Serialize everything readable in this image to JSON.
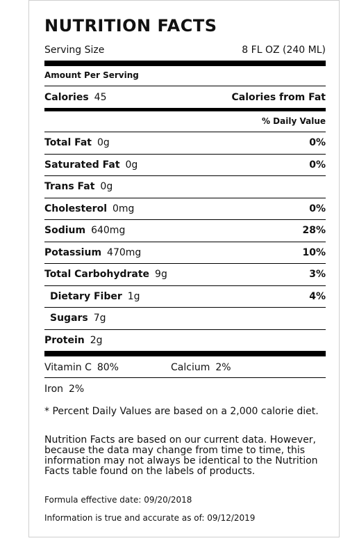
{
  "title": "NUTRITION FACTS",
  "serving": {
    "label": "Serving Size",
    "value": "8 FL OZ (240 ML)"
  },
  "amount_per_serving": "Amount Per Serving",
  "calories": {
    "label": "Calories",
    "value": "45",
    "from_fat_label": "Calories from Fat"
  },
  "daily_value_header": "% Daily Value",
  "nutrients": [
    {
      "name": "Total Fat",
      "amount": "0g",
      "dv": "0%"
    },
    {
      "name": "Saturated Fat",
      "amount": "0g",
      "dv": "0%"
    },
    {
      "name": "Trans Fat",
      "amount": "0g",
      "dv": ""
    },
    {
      "name": "Cholesterol",
      "amount": "0mg",
      "dv": "0%"
    },
    {
      "name": "Sodium",
      "amount": "640mg",
      "dv": "28%"
    },
    {
      "name": "Potassium",
      "amount": "470mg",
      "dv": "10%"
    },
    {
      "name": "Total Carbohydrate",
      "amount": "9g",
      "dv": "3%"
    },
    {
      "name": "Dietary Fiber",
      "amount": "1g",
      "dv": "4%"
    },
    {
      "name": "Sugars",
      "amount": "7g",
      "dv": ""
    },
    {
      "name": "Protein",
      "amount": "2g",
      "dv": ""
    }
  ],
  "vitamins": {
    "vitamin_c": {
      "label": "Vitamin C",
      "value": "80%"
    },
    "calcium": {
      "label": "Calcium",
      "value": "2%"
    },
    "iron": {
      "label": "Iron",
      "value": "2%"
    }
  },
  "footnotes": {
    "percent_dv": "* Percent Daily Values are based on a 2,000 calorie diet.",
    "disclaimer": "Nutrition Facts are based on our current data. However, because the data may change from time to time, this information may not always be identical to the Nutrition Facts table found on the labels of products.",
    "formula_date": "Formula effective date: 09/20/2018",
    "accuracy_date": "Information is true and accurate as of: 09/12/2019"
  }
}
